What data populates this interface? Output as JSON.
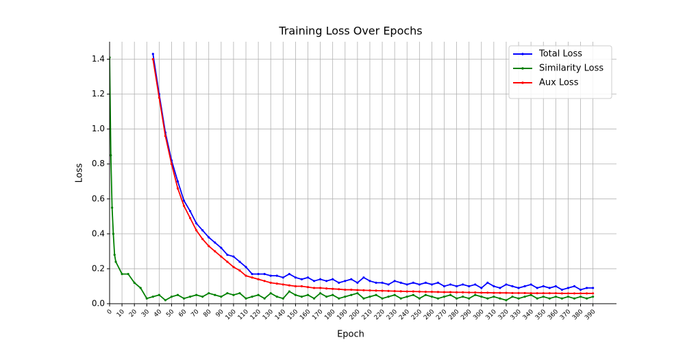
{
  "chart_data": {
    "type": "line",
    "title": "Training Loss Over Epochs",
    "x_label": "Epoch",
    "y_label": "Loss",
    "x": [
      0,
      1,
      2,
      3,
      4,
      5,
      10,
      15,
      20,
      25,
      30,
      35,
      40,
      45,
      50,
      55,
      60,
      65,
      70,
      75,
      80,
      85,
      90,
      95,
      100,
      105,
      110,
      115,
      120,
      125,
      130,
      135,
      140,
      145,
      150,
      155,
      160,
      165,
      170,
      175,
      180,
      185,
      190,
      195,
      200,
      205,
      210,
      215,
      220,
      225,
      230,
      235,
      240,
      245,
      250,
      255,
      260,
      265,
      270,
      275,
      280,
      285,
      290,
      295,
      300,
      305,
      310,
      315,
      320,
      325,
      330,
      335,
      340,
      345,
      350,
      355,
      360,
      365,
      370,
      375,
      380,
      385,
      390
    ],
    "series": [
      {
        "name": "Total Loss",
        "color": "#0000ff",
        "values": [
          null,
          null,
          null,
          null,
          null,
          null,
          null,
          null,
          null,
          null,
          null,
          1.43,
          1.2,
          0.98,
          0.82,
          0.7,
          0.59,
          0.53,
          0.46,
          0.42,
          0.38,
          0.35,
          0.32,
          0.28,
          0.27,
          0.24,
          0.21,
          0.17,
          0.17,
          0.17,
          0.16,
          0.16,
          0.15,
          0.17,
          0.15,
          0.14,
          0.15,
          0.13,
          0.14,
          0.13,
          0.14,
          0.12,
          0.13,
          0.14,
          0.12,
          0.15,
          0.13,
          0.12,
          0.12,
          0.11,
          0.13,
          0.12,
          0.11,
          0.12,
          0.11,
          0.12,
          0.11,
          0.12,
          0.1,
          0.11,
          0.1,
          0.11,
          0.1,
          0.11,
          0.09,
          0.12,
          0.1,
          0.09,
          0.11,
          0.1,
          0.09,
          0.1,
          0.11,
          0.09,
          0.1,
          0.09,
          0.1,
          0.08,
          0.09,
          0.1,
          0.08,
          0.09,
          0.09
        ]
      },
      {
        "name": "Similarity Loss",
        "color": "#008000",
        "values": [
          1.41,
          0.85,
          0.55,
          0.4,
          0.28,
          0.24,
          0.17,
          0.17,
          0.12,
          0.09,
          0.03,
          0.04,
          0.05,
          0.02,
          0.04,
          0.05,
          0.03,
          0.04,
          0.05,
          0.04,
          0.06,
          0.05,
          0.04,
          0.06,
          0.05,
          0.06,
          0.03,
          0.04,
          0.05,
          0.03,
          0.06,
          0.04,
          0.03,
          0.07,
          0.05,
          0.04,
          0.05,
          0.03,
          0.06,
          0.04,
          0.05,
          0.03,
          0.04,
          0.05,
          0.06,
          0.03,
          0.04,
          0.05,
          0.03,
          0.04,
          0.05,
          0.03,
          0.04,
          0.05,
          0.03,
          0.05,
          0.04,
          0.03,
          0.04,
          0.05,
          0.03,
          0.04,
          0.03,
          0.05,
          0.04,
          0.03,
          0.04,
          0.03,
          0.02,
          0.04,
          0.03,
          0.04,
          0.05,
          0.03,
          0.04,
          0.03,
          0.04,
          0.03,
          0.04,
          0.03,
          0.04,
          0.03,
          0.04
        ]
      },
      {
        "name": "Aux Loss",
        "color": "#ff0000",
        "values": [
          null,
          null,
          null,
          null,
          null,
          null,
          null,
          null,
          null,
          null,
          null,
          1.4,
          1.18,
          0.96,
          0.8,
          0.66,
          0.56,
          0.49,
          0.42,
          0.37,
          0.33,
          0.3,
          0.27,
          0.24,
          0.21,
          0.19,
          0.16,
          0.15,
          0.14,
          0.13,
          0.12,
          0.115,
          0.11,
          0.105,
          0.1,
          0.1,
          0.095,
          0.09,
          0.09,
          0.087,
          0.085,
          0.083,
          0.08,
          0.08,
          0.078,
          0.077,
          0.076,
          0.075,
          0.074,
          0.073,
          0.072,
          0.071,
          0.07,
          0.07,
          0.069,
          0.068,
          0.068,
          0.067,
          0.066,
          0.066,
          0.065,
          0.065,
          0.064,
          0.064,
          0.063,
          0.063,
          0.062,
          0.062,
          0.062,
          0.061,
          0.061,
          0.061,
          0.06,
          0.06,
          0.06,
          0.06,
          0.06,
          0.059,
          0.059,
          0.059,
          0.059,
          0.059,
          0.059
        ]
      }
    ],
    "xlim": [
      0,
      409
    ],
    "ylim": [
      0,
      1.5
    ],
    "xticks": [
      0,
      10,
      20,
      30,
      40,
      50,
      60,
      70,
      80,
      90,
      100,
      110,
      120,
      130,
      140,
      150,
      160,
      170,
      180,
      190,
      200,
      210,
      220,
      230,
      240,
      250,
      260,
      270,
      280,
      290,
      300,
      310,
      320,
      330,
      340,
      350,
      360,
      370,
      380,
      390
    ],
    "yticks": [
      {
        "value": 0,
        "label": "0.0"
      },
      0.2,
      0.4,
      0.6,
      0.8,
      {
        "value": 1,
        "label": "1.0"
      },
      1.2,
      1.4
    ],
    "grid": true,
    "legend": "upper-right"
  }
}
